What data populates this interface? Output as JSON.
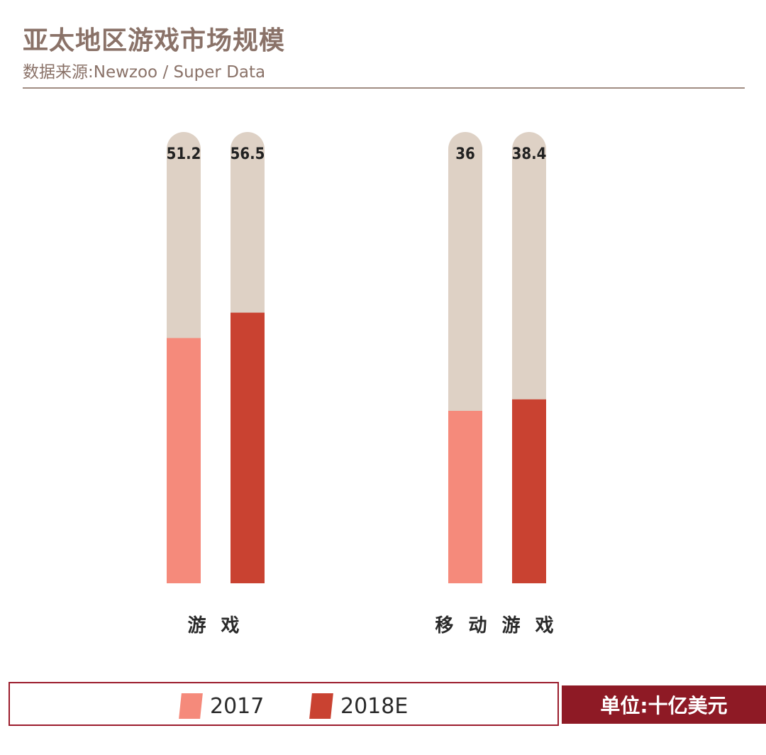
{
  "header": {
    "title": "亚太地区游戏市场规模",
    "subtitle": "数据来源:Newzoo / Super Data"
  },
  "unit_label": "单位:十亿美元",
  "colors": {
    "series_2017": "#f58a7b",
    "series_2018E": "#c94231",
    "track": "#ded1c5"
  },
  "chart_data": {
    "type": "bar",
    "categories": [
      "游 戏",
      "移 动 游 戏"
    ],
    "series": [
      {
        "name": "2017",
        "values": [
          51.2,
          36
        ]
      },
      {
        "name": "2018E",
        "values": [
          56.5,
          38.4
        ]
      }
    ],
    "data_labels": [
      [
        "51.2",
        "56.5"
      ],
      [
        "36",
        "38.4"
      ]
    ],
    "grid": false,
    "legend": "bottom"
  }
}
